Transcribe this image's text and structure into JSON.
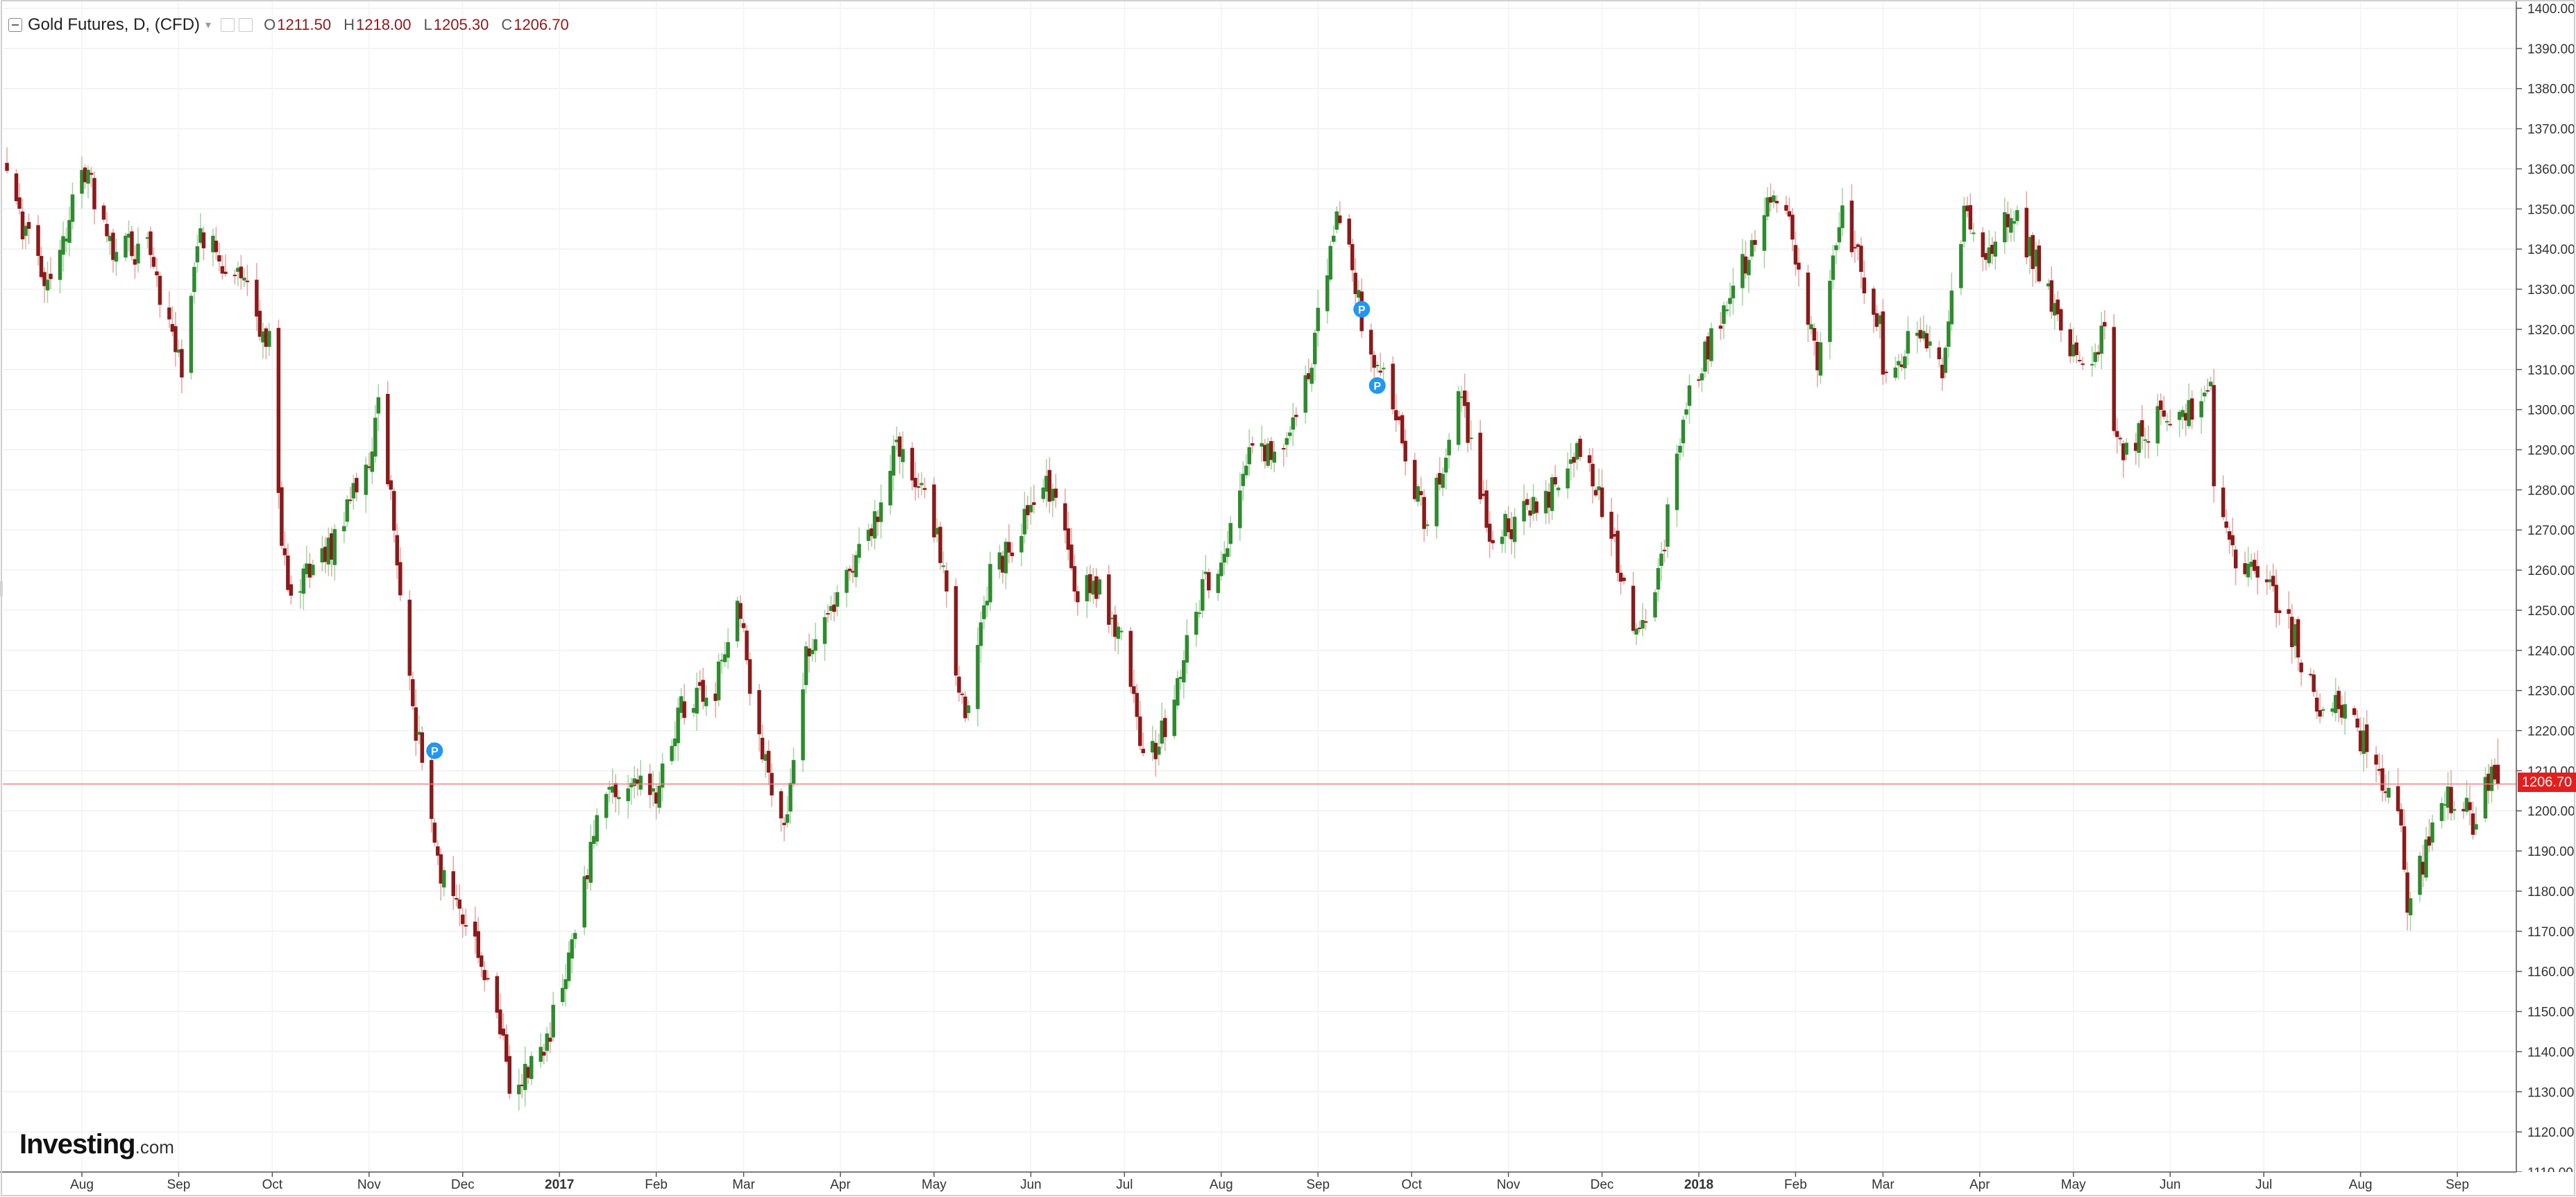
{
  "legend": {
    "title": "Gold Futures, D, (CFD)",
    "open_label": "O",
    "open": "1211.50",
    "high_label": "H",
    "high": "1218.00",
    "low_label": "L",
    "low": "1205.30",
    "close_label": "C",
    "close": "1206.70"
  },
  "brand": {
    "name": "Investing",
    "suffix": ".com"
  },
  "last_price_tag": "1206.70",
  "icons": [
    "collapse-icon",
    "caret-down-icon",
    "settings-icon",
    "close-icon",
    "pattern-marker-icon"
  ],
  "chart_data": {
    "type": "candlestick",
    "title": "Gold Futures, D, (CFD)",
    "xlabel": "",
    "ylabel": "",
    "ylim": [
      1110,
      1400
    ],
    "y_tick_step": 10,
    "grid": true,
    "axis_position": "right",
    "last_price": 1206.7,
    "colors": {
      "up": "#2e8b2e",
      "down": "#8b1a1a",
      "last_price_line": "#f08080",
      "last_price_tag": "#e41e1e",
      "marker": "#2196f3"
    },
    "x_labels": [
      {
        "date": "2016-08-01",
        "label": "Aug"
      },
      {
        "date": "2016-09-01",
        "label": "Sep"
      },
      {
        "date": "2016-10-01",
        "label": "Oct"
      },
      {
        "date": "2016-11-01",
        "label": "Nov"
      },
      {
        "date": "2016-12-01",
        "label": "Dec"
      },
      {
        "date": "2017-01-01",
        "label": "2017",
        "bold": true
      },
      {
        "date": "2017-02-01",
        "label": "Feb"
      },
      {
        "date": "2017-03-01",
        "label": "Mar"
      },
      {
        "date": "2017-04-01",
        "label": "Apr"
      },
      {
        "date": "2017-05-01",
        "label": "May"
      },
      {
        "date": "2017-06-01",
        "label": "Jun"
      },
      {
        "date": "2017-07-01",
        "label": "Jul"
      },
      {
        "date": "2017-08-01",
        "label": "Aug"
      },
      {
        "date": "2017-09-01",
        "label": "Sep"
      },
      {
        "date": "2017-10-01",
        "label": "Oct"
      },
      {
        "date": "2017-11-01",
        "label": "Nov"
      },
      {
        "date": "2017-12-01",
        "label": "Dec"
      },
      {
        "date": "2018-01-01",
        "label": "2018",
        "bold": true
      },
      {
        "date": "2018-02-01",
        "label": "Feb"
      },
      {
        "date": "2018-03-01",
        "label": "Mar"
      },
      {
        "date": "2018-04-01",
        "label": "Apr"
      },
      {
        "date": "2018-05-01",
        "label": "May"
      },
      {
        "date": "2018-06-01",
        "label": "Jun"
      },
      {
        "date": "2018-07-01",
        "label": "Jul"
      },
      {
        "date": "2018-08-01",
        "label": "Aug"
      },
      {
        "date": "2018-09-01",
        "label": "Sep"
      }
    ],
    "markers": [
      {
        "date": "2016-11-22",
        "price": 1215,
        "label": "P"
      },
      {
        "date": "2017-09-15",
        "price": 1325,
        "label": "P"
      },
      {
        "date": "2017-09-20",
        "price": 1306,
        "label": "P"
      }
    ],
    "close_path": [
      [
        "2016-07-08",
        1358
      ],
      [
        "2016-07-20",
        1330
      ],
      [
        "2016-08-02",
        1360
      ],
      [
        "2016-08-10",
        1340
      ],
      [
        "2016-08-22",
        1340
      ],
      [
        "2016-09-02",
        1312
      ],
      [
        "2016-09-08",
        1345
      ],
      [
        "2016-09-22",
        1330
      ],
      [
        "2016-09-30",
        1317
      ],
      [
        "2016-10-04",
        1266
      ],
      [
        "2016-10-07",
        1255
      ],
      [
        "2016-10-20",
        1265
      ],
      [
        "2016-11-01",
        1288
      ],
      [
        "2016-11-04",
        1303
      ],
      [
        "2016-11-08",
        1278
      ],
      [
        "2016-11-10",
        1265
      ],
      [
        "2016-11-15",
        1225
      ],
      [
        "2016-11-24",
        1185
      ],
      [
        "2016-12-05",
        1170
      ],
      [
        "2016-12-14",
        1145
      ],
      [
        "2016-12-16",
        1132
      ],
      [
        "2016-12-27",
        1140
      ],
      [
        "2017-01-03",
        1160
      ],
      [
        "2017-01-13",
        1198
      ],
      [
        "2017-01-24",
        1210
      ],
      [
        "2017-02-01",
        1205
      ],
      [
        "2017-02-09",
        1225
      ],
      [
        "2017-02-20",
        1230
      ],
      [
        "2017-02-27",
        1256
      ],
      [
        "2017-03-03",
        1233
      ],
      [
        "2017-03-10",
        1203
      ],
      [
        "2017-03-15",
        1199
      ],
      [
        "2017-03-21",
        1240
      ],
      [
        "2017-03-31",
        1252
      ],
      [
        "2017-04-12",
        1272
      ],
      [
        "2017-04-18",
        1290
      ],
      [
        "2017-04-26",
        1283
      ],
      [
        "2017-05-03",
        1265
      ],
      [
        "2017-05-09",
        1228
      ],
      [
        "2017-05-12",
        1225
      ],
      [
        "2017-05-19",
        1258
      ],
      [
        "2017-06-06",
        1280
      ],
      [
        "2017-06-09",
        1278
      ],
      [
        "2017-06-16",
        1255
      ],
      [
        "2017-06-23",
        1255
      ],
      [
        "2017-06-30",
        1243
      ],
      [
        "2017-07-07",
        1212
      ],
      [
        "2017-07-14",
        1220
      ],
      [
        "2017-07-26",
        1255
      ],
      [
        "2017-08-04",
        1268
      ],
      [
        "2017-08-11",
        1290
      ],
      [
        "2017-08-18",
        1288
      ],
      [
        "2017-08-29",
        1310
      ],
      [
        "2017-09-05",
        1338
      ],
      [
        "2017-09-08",
        1350
      ],
      [
        "2017-09-15",
        1322
      ],
      [
        "2017-09-26",
        1298
      ],
      [
        "2017-10-06",
        1270
      ],
      [
        "2017-10-16",
        1305
      ],
      [
        "2017-10-26",
        1268
      ],
      [
        "2017-11-03",
        1272
      ],
      [
        "2017-11-15",
        1280
      ],
      [
        "2017-11-24",
        1292
      ],
      [
        "2017-12-05",
        1265
      ],
      [
        "2017-12-12",
        1243
      ],
      [
        "2017-12-18",
        1255
      ],
      [
        "2017-12-29",
        1305
      ],
      [
        "2018-01-12",
        1330
      ],
      [
        "2018-01-25",
        1355
      ],
      [
        "2018-02-01",
        1340
      ],
      [
        "2018-02-08",
        1310
      ],
      [
        "2018-02-16",
        1350
      ],
      [
        "2018-02-28",
        1320
      ],
      [
        "2018-03-01",
        1305
      ],
      [
        "2018-03-12",
        1320
      ],
      [
        "2018-03-20",
        1310
      ],
      [
        "2018-03-27",
        1350
      ],
      [
        "2018-04-03",
        1335
      ],
      [
        "2018-04-11",
        1350
      ],
      [
        "2018-04-20",
        1335
      ],
      [
        "2018-04-27",
        1320
      ],
      [
        "2018-05-03",
        1310
      ],
      [
        "2018-05-11",
        1320
      ],
      [
        "2018-05-15",
        1290
      ],
      [
        "2018-05-29",
        1298
      ],
      [
        "2018-06-08",
        1300
      ],
      [
        "2018-06-14",
        1305
      ],
      [
        "2018-06-15",
        1280
      ],
      [
        "2018-06-21",
        1265
      ],
      [
        "2018-07-03",
        1255
      ],
      [
        "2018-07-11",
        1243
      ],
      [
        "2018-07-19",
        1225
      ],
      [
        "2018-07-27",
        1225
      ],
      [
        "2018-08-06",
        1212
      ],
      [
        "2018-08-14",
        1195
      ],
      [
        "2018-08-16",
        1175
      ],
      [
        "2018-08-24",
        1195
      ],
      [
        "2018-08-27",
        1205
      ],
      [
        "2018-09-06",
        1198
      ],
      [
        "2018-09-12",
        1210
      ],
      [
        "2018-09-14",
        1206.7
      ]
    ]
  }
}
